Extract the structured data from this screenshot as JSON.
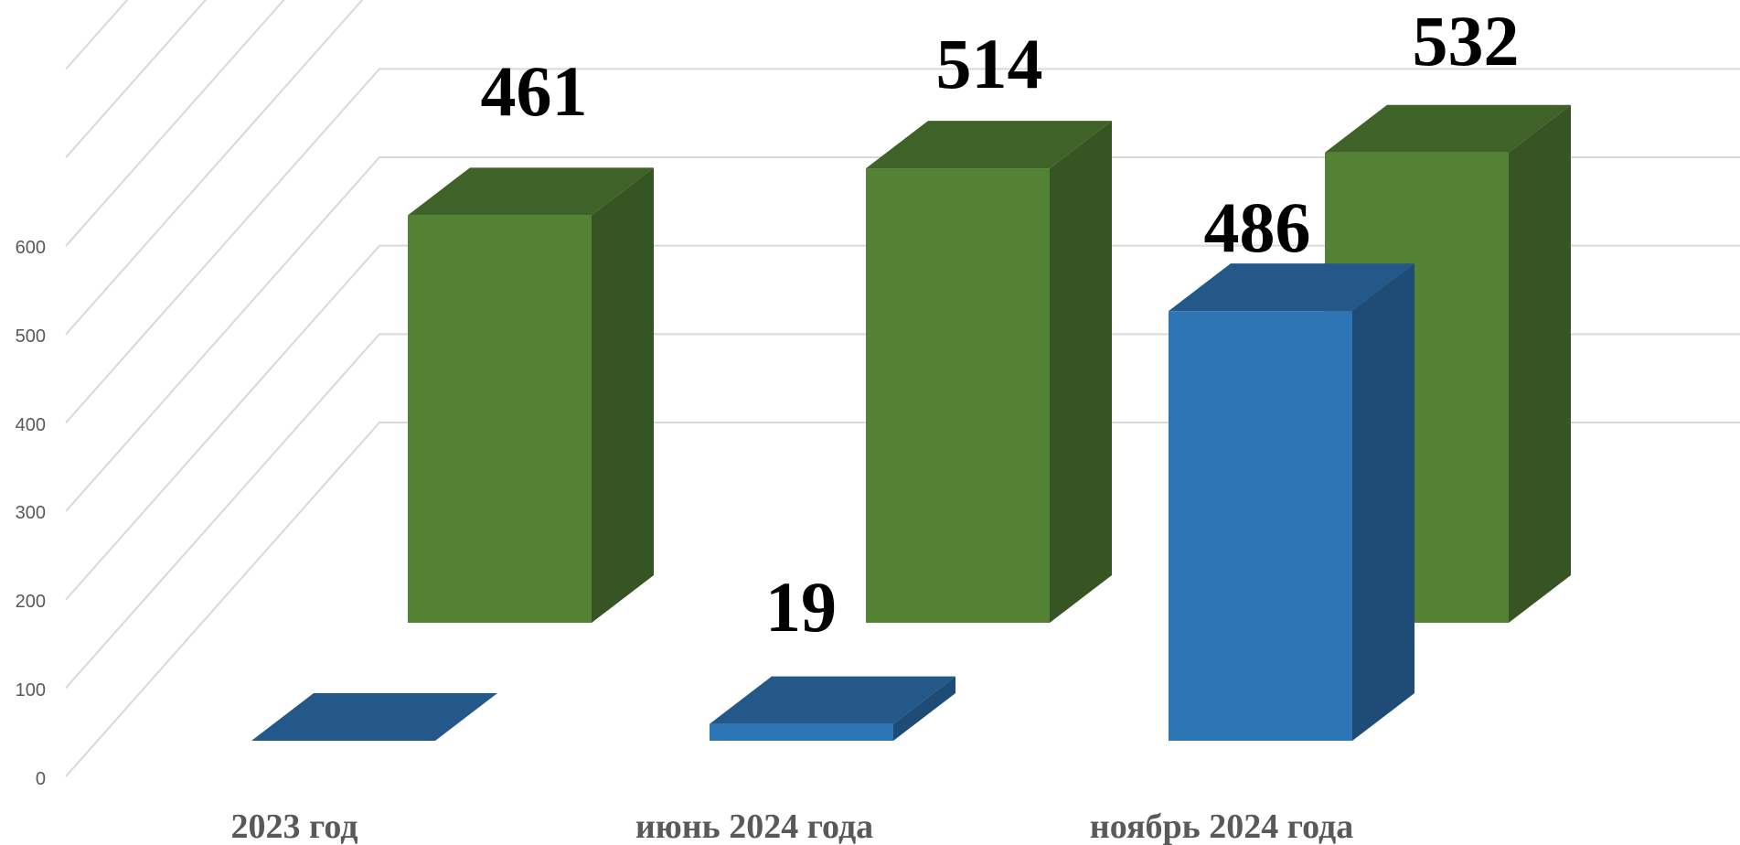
{
  "chart_data": {
    "type": "bar",
    "title": "",
    "xlabel": "",
    "ylabel": "",
    "categories": [
      "2023 год",
      "июнь 2024 года",
      "ноябрь 2024 года"
    ],
    "y_ticks": [
      "0",
      "100",
      "200",
      "300",
      "400",
      "500",
      "600"
    ],
    "ylim": [
      0,
      600
    ],
    "grid": true,
    "legend": "none",
    "style": "3d-clustered-column",
    "series": [
      {
        "color": "#2E75B6",
        "values": [
          0,
          19,
          486
        ],
        "labels": [
          "",
          "19",
          "486"
        ]
      },
      {
        "color": "#548235",
        "values": [
          461,
          514,
          532
        ],
        "labels": [
          "461",
          "514",
          "532"
        ]
      }
    ]
  }
}
